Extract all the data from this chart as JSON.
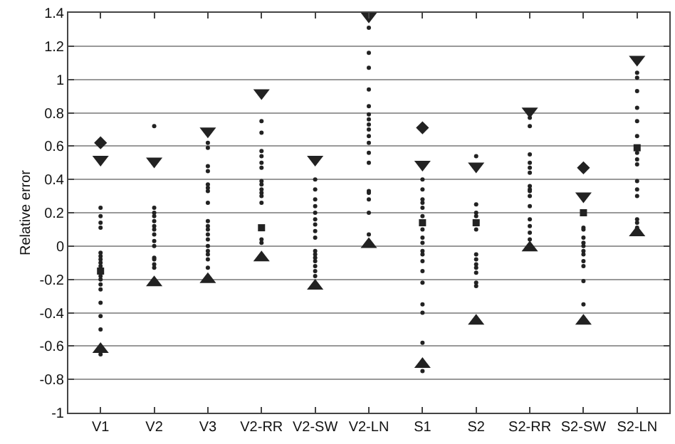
{
  "chart_data": {
    "type": "scatter",
    "ylabel": "Relative error",
    "categories": [
      "V1",
      "V2",
      "V3",
      "V2-RR",
      "V2-SW",
      "V2-LN",
      "S1",
      "S2",
      "S2-RR",
      "S2-SW",
      "S2-LN"
    ],
    "ylim": [
      -1,
      1.4
    ],
    "yticks": [
      -1,
      -0.8,
      -0.6,
      -0.4,
      -0.2,
      0,
      0.2,
      0.4,
      0.6,
      0.8,
      1,
      1.2,
      1.4
    ],
    "grid": "y",
    "series": [
      {
        "color": "#222222",
        "marker": "circle",
        "x": [
          "V1",
          "V1",
          "V1",
          "V1",
          "V1",
          "V1",
          "V1",
          "V1",
          "V1",
          "V1",
          "V1",
          "V1",
          "V1",
          "V1",
          "V1",
          "V1",
          "V1",
          "V2",
          "V2",
          "V2",
          "V2",
          "V2",
          "V2",
          "V2",
          "V2",
          "V2",
          "V2",
          "V2",
          "V2",
          "V2",
          "V2",
          "V3",
          "V3",
          "V3",
          "V3",
          "V3",
          "V3",
          "V3",
          "V3",
          "V3",
          "V3",
          "V3",
          "V3",
          "V3",
          "V3",
          "V3",
          "V3",
          "V3",
          "V3",
          "V2-RR",
          "V2-RR",
          "V2-RR",
          "V2-RR",
          "V2-RR",
          "V2-RR",
          "V2-RR",
          "V2-RR",
          "V2-RR",
          "V2-RR",
          "V2-RR",
          "V2-RR",
          "V2-RR",
          "V2-RR",
          "V2-SW",
          "V2-SW",
          "V2-SW",
          "V2-SW",
          "V2-SW",
          "V2-SW",
          "V2-SW",
          "V2-SW",
          "V2-SW",
          "V2-SW",
          "V2-SW",
          "V2-SW",
          "V2-SW",
          "V2-SW",
          "V2-SW",
          "V2-SW",
          "V2-LN",
          "V2-LN",
          "V2-LN",
          "V2-LN",
          "V2-LN",
          "V2-LN",
          "V2-LN",
          "V2-LN",
          "V2-LN",
          "V2-LN",
          "V2-LN",
          "V2-LN",
          "V2-LN",
          "V2-LN",
          "V2-LN",
          "V2-LN",
          "V2-LN",
          "V2-LN",
          "S1",
          "S1",
          "S1",
          "S1",
          "S1",
          "S1",
          "S1",
          "S1",
          "S1",
          "S1",
          "S1",
          "S1",
          "S1",
          "S1",
          "S1",
          "S1",
          "S1",
          "S1",
          "S2",
          "S2",
          "S2",
          "S2",
          "S2",
          "S2",
          "S2",
          "S2",
          "S2",
          "S2",
          "S2",
          "S2",
          "S2-RR",
          "S2-RR",
          "S2-RR",
          "S2-RR",
          "S2-RR",
          "S2-RR",
          "S2-RR",
          "S2-RR",
          "S2-RR",
          "S2-RR",
          "S2-RR",
          "S2-RR",
          "S2-RR",
          "S2-RR",
          "S2-RR",
          "S2-SW",
          "S2-SW",
          "S2-SW",
          "S2-SW",
          "S2-SW",
          "S2-SW",
          "S2-SW",
          "S2-SW",
          "S2-SW",
          "S2-SW",
          "S2-SW",
          "S2-LN",
          "S2-LN",
          "S2-LN",
          "S2-LN",
          "S2-LN",
          "S2-LN",
          "S2-LN",
          "S2-LN",
          "S2-LN",
          "S2-LN",
          "S2-LN",
          "S2-LN",
          "S2-LN",
          "S2-LN",
          "S2-LN"
        ],
        "values": [
          0.23,
          0.18,
          0.14,
          0.11,
          -0.04,
          -0.06,
          -0.08,
          -0.1,
          -0.12,
          -0.18,
          -0.2,
          -0.23,
          -0.26,
          -0.34,
          -0.42,
          -0.5,
          -0.65,
          0.72,
          0.23,
          0.2,
          0.18,
          0.15,
          0.12,
          0.1,
          0.07,
          0.03,
          0,
          -0.07,
          -0.08,
          -0.11,
          -0.13,
          0.62,
          0.59,
          0.48,
          0.45,
          0.37,
          0.35,
          0.33,
          0.26,
          0.15,
          0.12,
          0.1,
          0.07,
          0.04,
          0,
          -0.03,
          -0.05,
          -0.08,
          -0.13,
          0.75,
          0.68,
          0.57,
          0.54,
          0.5,
          0.47,
          0.39,
          0.37,
          0.34,
          0.32,
          0.3,
          0.26,
          0.04,
          0.02,
          0.4,
          0.34,
          0.28,
          0.24,
          0.2,
          0.16,
          0.13,
          0.09,
          0.05,
          -0.03,
          -0.05,
          -0.07,
          -0.09,
          -0.12,
          -0.15,
          -0.18,
          1.31,
          1.16,
          1.07,
          0.94,
          0.84,
          0.79,
          0.76,
          0.73,
          0.7,
          0.66,
          0.62,
          0.56,
          0.5,
          0.33,
          0.32,
          0.28,
          0.2,
          0.07,
          0.4,
          0.34,
          0.28,
          0.26,
          0.23,
          0.18,
          0.1,
          0.05,
          0.02,
          -0.03,
          -0.05,
          -0.09,
          -0.15,
          -0.22,
          -0.35,
          -0.4,
          -0.58,
          -0.75,
          0.54,
          0.25,
          0.2,
          0.18,
          0.1,
          -0.05,
          -0.08,
          -0.11,
          -0.13,
          -0.16,
          -0.22,
          -0.24,
          0.77,
          0.72,
          0.55,
          0.5,
          0.47,
          0.44,
          0.36,
          0.34,
          0.33,
          0.3,
          0.24,
          0.16,
          0.12,
          0.08,
          0.04,
          0.11,
          0.1,
          0.05,
          0.02,
          0,
          -0.03,
          -0.05,
          -0.09,
          -0.12,
          -0.21,
          -0.35,
          1.04,
          1.01,
          0.93,
          0.83,
          0.75,
          0.66,
          0.56,
          0.52,
          0.49,
          0.39,
          0.34,
          0.3,
          0.16,
          0.14,
          0.11
        ]
      },
      {
        "color": "#222222",
        "marker": "triangle-down",
        "x": [
          "V1",
          "V2",
          "V3",
          "V2-RR",
          "V2-SW",
          "V2-LN",
          "S1",
          "S2",
          "S2-RR",
          "S2-SW",
          "S2-LN"
        ],
        "values": [
          0.52,
          0.51,
          0.69,
          0.92,
          0.52,
          1.38,
          0.49,
          0.48,
          0.81,
          0.3,
          1.12
        ]
      },
      {
        "color": "#222222",
        "marker": "triangle",
        "x": [
          "V1",
          "V2",
          "V3",
          "V2-RR",
          "V2-SW",
          "V2-LN",
          "S1",
          "S2",
          "S2-RR",
          "S2-SW",
          "S2-LN"
        ],
        "values": [
          -0.62,
          -0.22,
          -0.2,
          -0.07,
          -0.24,
          0.01,
          -0.71,
          -0.45,
          -0.01,
          -0.45,
          0.08
        ]
      },
      {
        "color": "#222222",
        "marker": "diamond",
        "x": [
          "V1",
          "S1",
          "S2-SW"
        ],
        "values": [
          0.62,
          0.71,
          0.47
        ]
      },
      {
        "color": "#222222",
        "marker": "square",
        "x": [
          "V1",
          "V2-RR",
          "S1",
          "S2",
          "S2-SW",
          "S2-LN"
        ],
        "values": [
          -0.15,
          0.11,
          0.14,
          0.14,
          0.2,
          0.59
        ]
      }
    ]
  }
}
